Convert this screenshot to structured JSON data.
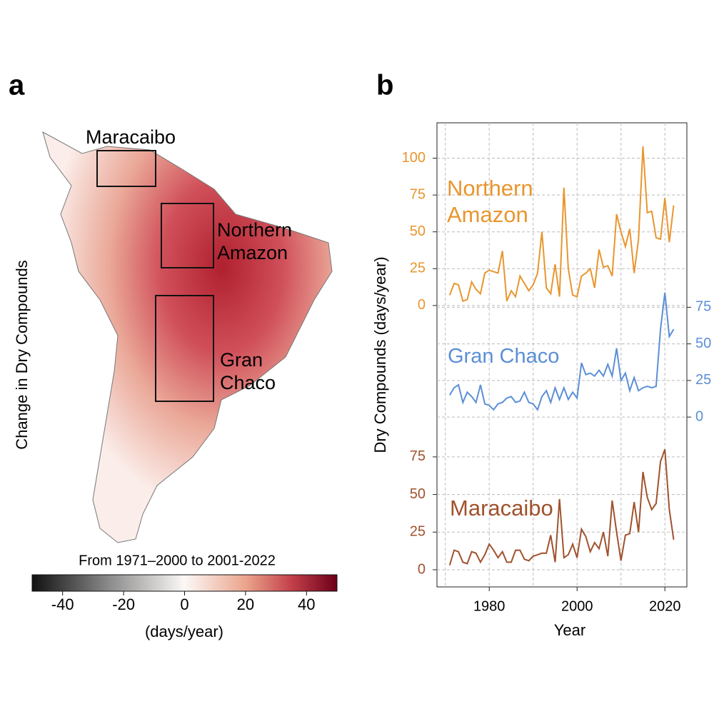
{
  "panels": {
    "a": "a",
    "b": "b"
  },
  "chart_data": [
    {
      "type": "map",
      "ylabel": "Change in Dry Compounds",
      "title": "From 1971–2000 to 2001-2022",
      "regions": [
        "Maracaibo",
        "Northern Amazon",
        "Gran Chaco"
      ],
      "colorbar": {
        "lim": [
          -50,
          50
        ],
        "ticks": [
          -40,
          -20,
          0,
          20,
          40
        ],
        "label": "(days/year)"
      }
    },
    {
      "type": "line",
      "xlabel": "Year",
      "ylabel": "Dry Compounds (days/year)",
      "xlim": [
        1968.1,
        2025
      ],
      "xticks": [
        1980,
        2000,
        2020
      ],
      "xgrid": [
        1970,
        1990,
        2010
      ],
      "grid": true,
      "x": [
        1971,
        1972,
        1973,
        1974,
        1975,
        1976,
        1977,
        1978,
        1979,
        1980,
        1981,
        1982,
        1983,
        1984,
        1985,
        1986,
        1987,
        1988,
        1989,
        1990,
        1991,
        1992,
        1993,
        1994,
        1995,
        1996,
        1997,
        1998,
        1999,
        2000,
        2001,
        2002,
        2003,
        2004,
        2005,
        2006,
        2007,
        2008,
        2009,
        2010,
        2011,
        2012,
        2013,
        2014,
        2015,
        2016,
        2017,
        2018,
        2019,
        2020,
        2021,
        2022
      ],
      "series": [
        {
          "name": "Northern Amazon",
          "color": "#e8962e",
          "ylim": [
            -191,
            124
          ],
          "yticks": [
            0,
            25,
            50,
            75,
            100
          ],
          "values": [
            7,
            15,
            14,
            3,
            4,
            16,
            11,
            8,
            22,
            24,
            23,
            22,
            37,
            3,
            10,
            6,
            20,
            15,
            10,
            14,
            22,
            50,
            12,
            8,
            28,
            6,
            80,
            25,
            7,
            6,
            20,
            22,
            25,
            12,
            38,
            26,
            27,
            20,
            62,
            50,
            40,
            52,
            22,
            45,
            108,
            63,
            64,
            46,
            45,
            73,
            43,
            68
          ]
        },
        {
          "name": "Gran Chaco",
          "color": "#5b8fd6",
          "axis": "y2",
          "ylim": [
            -116,
            201
          ],
          "yticks": [
            0,
            25,
            50,
            75
          ],
          "values": [
            15,
            20,
            22,
            10,
            17,
            14,
            10,
            22,
            9,
            8,
            5,
            9,
            10,
            13,
            14,
            10,
            11,
            17,
            10,
            9,
            5,
            14,
            18,
            10,
            20,
            12,
            20,
            12,
            17,
            13,
            37,
            29,
            30,
            28,
            32,
            28,
            36,
            28,
            47,
            25,
            30,
            18,
            27,
            18,
            20,
            21,
            20,
            21,
            60,
            85,
            55,
            60
          ]
        },
        {
          "name": "Maracaibo",
          "color": "#a0522d",
          "ylim": [
            -11.4,
            297
          ],
          "yticks": [
            0,
            25,
            50,
            75
          ],
          "values": [
            3,
            13,
            12,
            5,
            4,
            12,
            11,
            5,
            10,
            17,
            13,
            8,
            12,
            5,
            5,
            13,
            13,
            7,
            6,
            9,
            10,
            11,
            11,
            23,
            5,
            47,
            8,
            10,
            17,
            8,
            27,
            22,
            12,
            18,
            14,
            25,
            9,
            46,
            25,
            6,
            23,
            24,
            45,
            25,
            65,
            48,
            40,
            44,
            72,
            80,
            40,
            20
          ]
        }
      ]
    }
  ]
}
